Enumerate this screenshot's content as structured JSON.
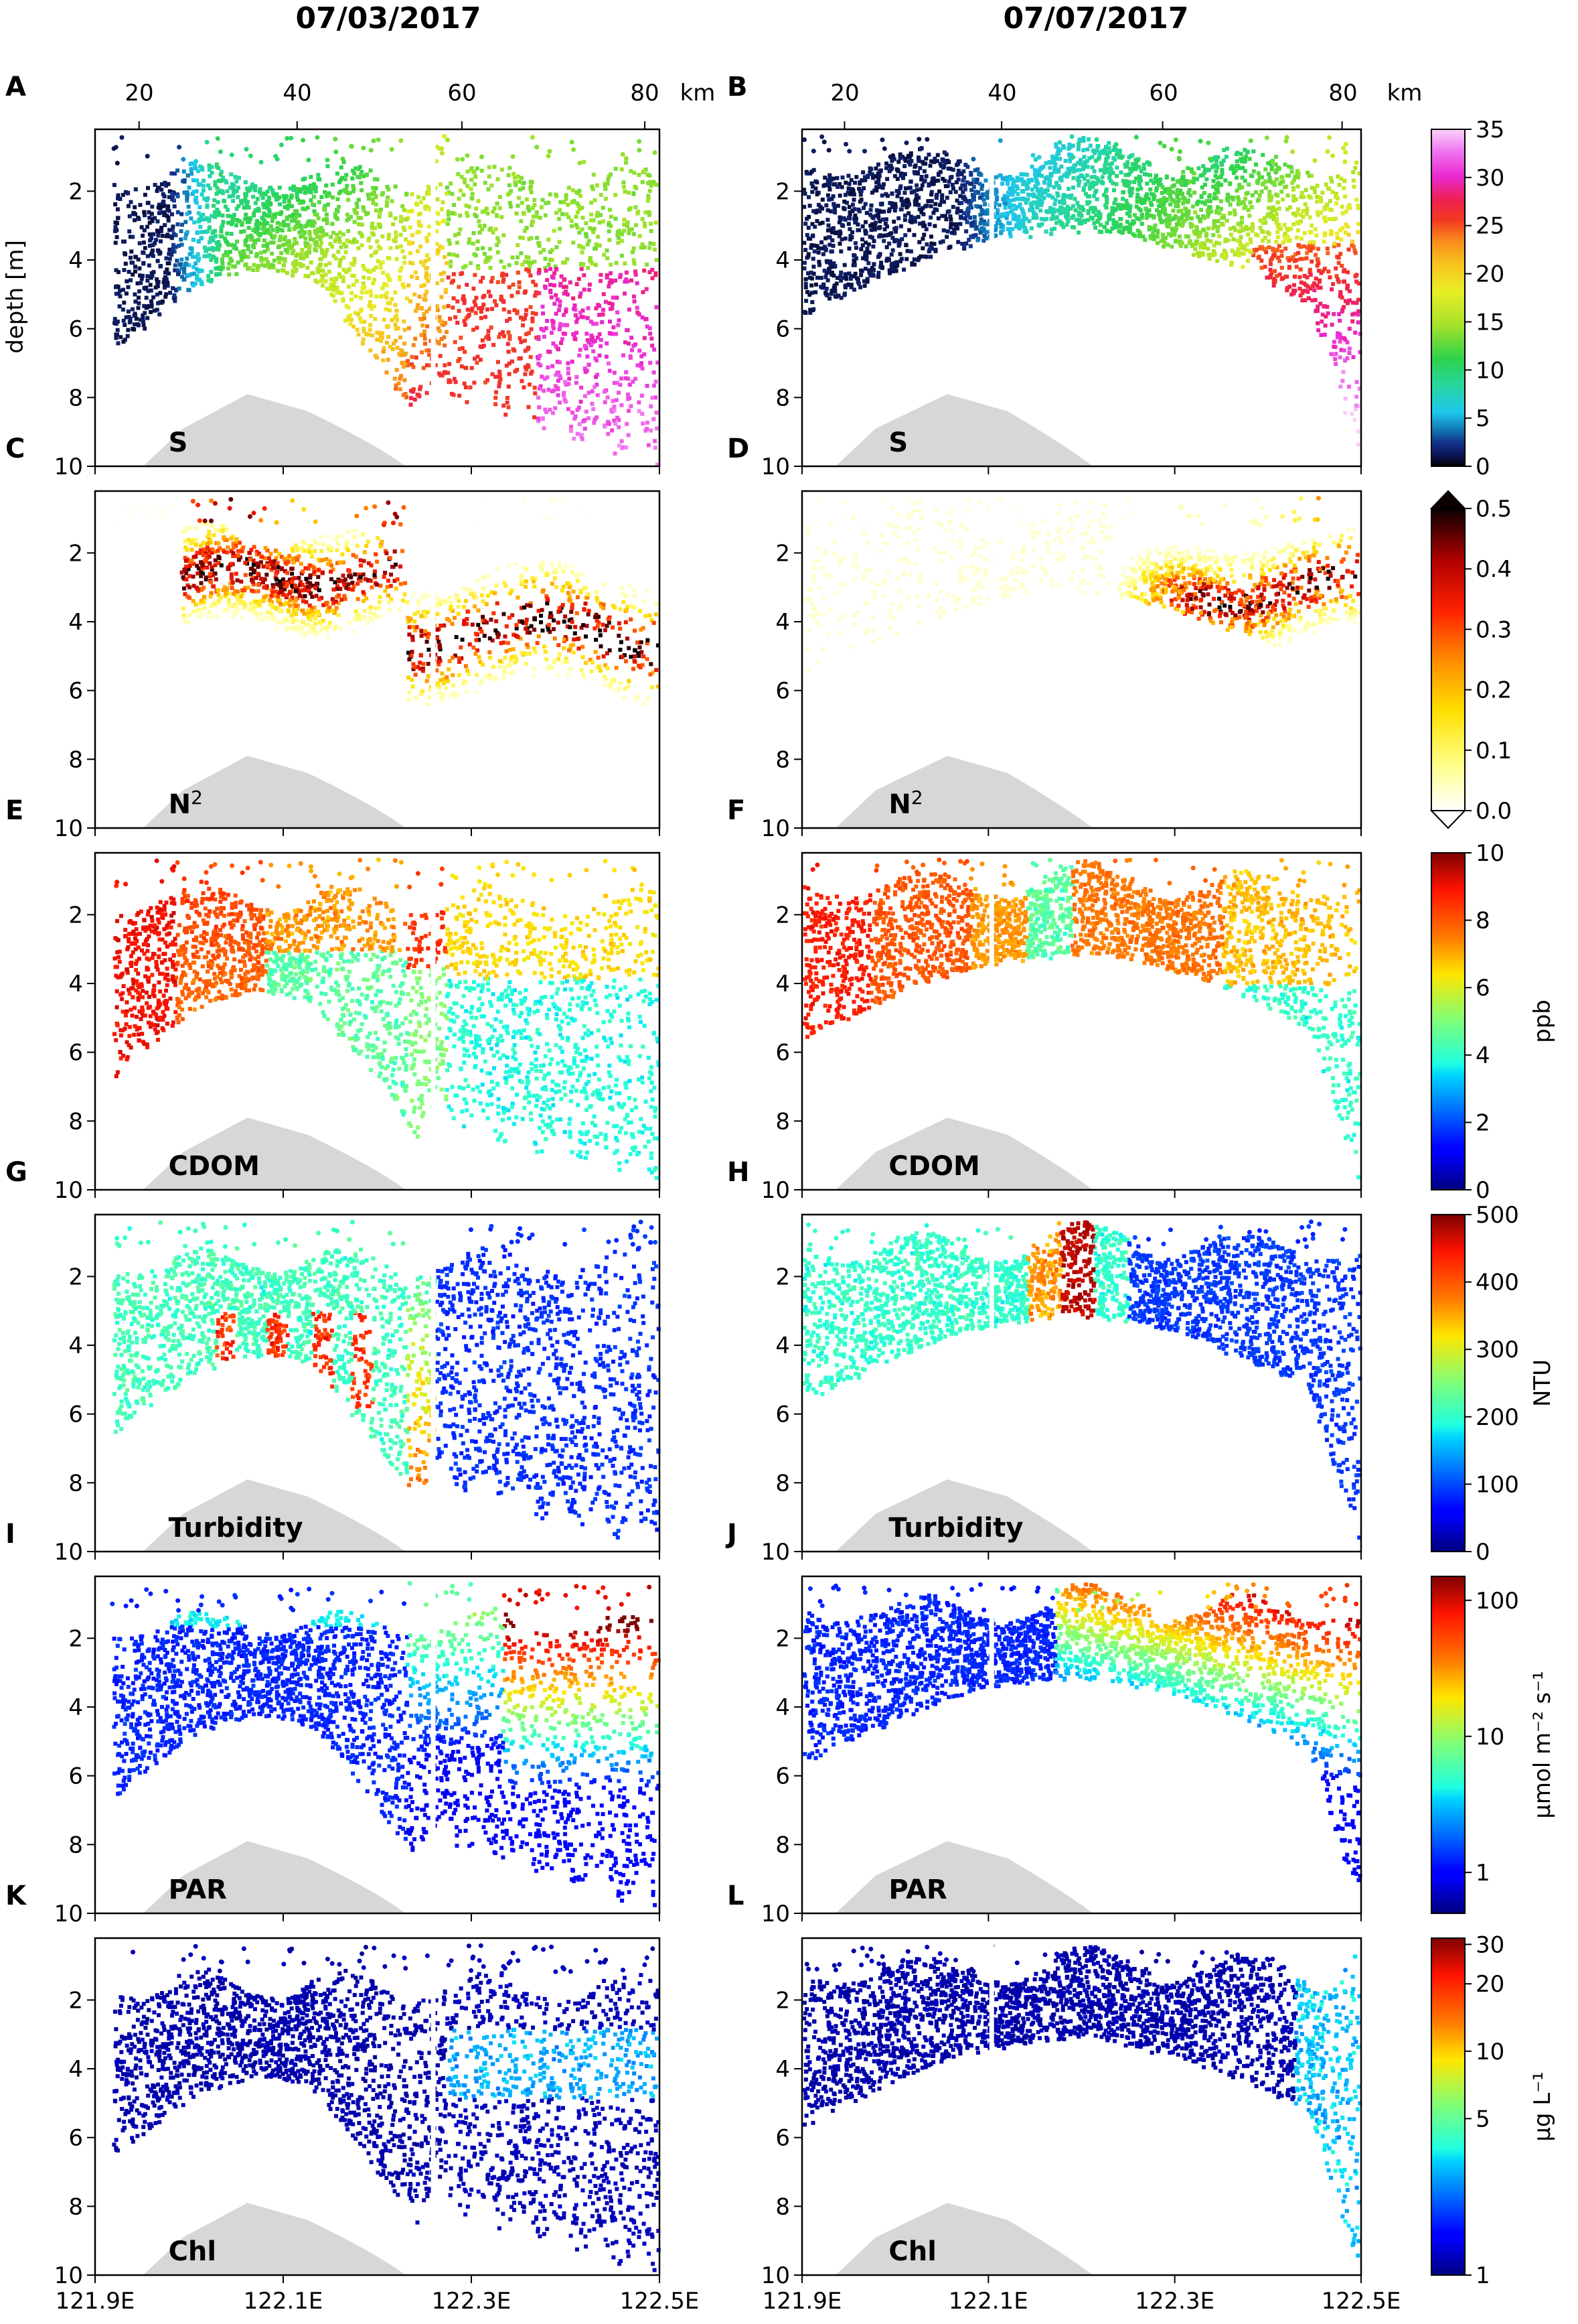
{
  "figure": {
    "dates": [
      "07/03/2017",
      "07/07/2017"
    ],
    "km_unit": "km",
    "depth_label": "depth [m]",
    "lon_ticks": [
      "121.9E",
      "122.1E",
      "122.3E",
      "122.5E"
    ],
    "lon_range": [
      121.9,
      122.5
    ],
    "km_ticks_left": [
      "20",
      "40",
      "60",
      "80"
    ],
    "km_ticks_right": [
      "20",
      "40",
      "60",
      "80"
    ],
    "depth_ticks": [
      "2",
      "4",
      "6",
      "8",
      "10"
    ]
  },
  "chart_data": [
    {
      "type": "scatter",
      "row": 0,
      "variable": "S",
      "label_sup": "",
      "panels": [
        {
          "letter": "A",
          "date": "07/03/2017",
          "kind": "salinity_left"
        },
        {
          "letter": "B",
          "date": "07/07/2017",
          "kind": "salinity_right"
        }
      ],
      "colorbar": {
        "cmap": "salinity",
        "ticks": [
          "0",
          "5",
          "10",
          "15",
          "20",
          "25",
          "30",
          "35"
        ],
        "range": [
          0,
          35
        ],
        "label": "",
        "scale": "linear"
      }
    },
    {
      "type": "scatter",
      "row": 1,
      "variable": "N",
      "label_sup": "2",
      "panels": [
        {
          "letter": "C",
          "date": "07/03/2017",
          "kind": "n2_left"
        },
        {
          "letter": "D",
          "date": "07/07/2017",
          "kind": "n2_right"
        }
      ],
      "colorbar": {
        "cmap": "hot_r",
        "ticks": [
          "0.0",
          "0.1",
          "0.2",
          "0.3",
          "0.4",
          "0.5"
        ],
        "range": [
          0,
          0.5
        ],
        "label": "",
        "scale": "linear",
        "extend": "both"
      }
    },
    {
      "type": "scatter",
      "row": 2,
      "variable": "CDOM",
      "label_sup": "",
      "panels": [
        {
          "letter": "E",
          "date": "07/03/2017",
          "kind": "cdom_left"
        },
        {
          "letter": "F",
          "date": "07/07/2017",
          "kind": "cdom_right"
        }
      ],
      "colorbar": {
        "cmap": "jet",
        "ticks": [
          "0",
          "2",
          "4",
          "6",
          "8",
          "10"
        ],
        "range": [
          0,
          10
        ],
        "label": "ppb",
        "scale": "linear"
      }
    },
    {
      "type": "scatter",
      "row": 3,
      "variable": "Turbidity",
      "label_sup": "",
      "panels": [
        {
          "letter": "G",
          "date": "07/03/2017",
          "kind": "turb_left"
        },
        {
          "letter": "H",
          "date": "07/07/2017",
          "kind": "turb_right"
        }
      ],
      "colorbar": {
        "cmap": "jet",
        "ticks": [
          "0",
          "100",
          "200",
          "300",
          "400",
          "500"
        ],
        "range": [
          0,
          500
        ],
        "label": "NTU",
        "scale": "linear"
      }
    },
    {
      "type": "scatter",
      "row": 4,
      "variable": "PAR",
      "label_sup": "",
      "panels": [
        {
          "letter": "I",
          "date": "07/03/2017",
          "kind": "par_left"
        },
        {
          "letter": "J",
          "date": "07/07/2017",
          "kind": "par_right"
        }
      ],
      "colorbar": {
        "cmap": "jet",
        "ticks": [
          "1",
          "10",
          "100"
        ],
        "tick_values": [
          1,
          10,
          100
        ],
        "range": [
          0.5,
          150
        ],
        "label": "μmol m⁻² s⁻¹",
        "scale": "log"
      }
    },
    {
      "type": "scatter",
      "row": 5,
      "variable": "Chl",
      "label_sup": "",
      "panels": [
        {
          "letter": "K",
          "date": "07/03/2017",
          "kind": "chl_left"
        },
        {
          "letter": "L",
          "date": "07/07/2017",
          "kind": "chl_right"
        }
      ],
      "colorbar": {
        "cmap": "jet",
        "ticks": [
          "1",
          "5",
          "10",
          "20",
          "30"
        ],
        "tick_values": [
          1,
          5,
          10,
          20,
          30
        ],
        "range": [
          1,
          32
        ],
        "label": "μg L⁻¹",
        "scale": "log"
      }
    }
  ]
}
